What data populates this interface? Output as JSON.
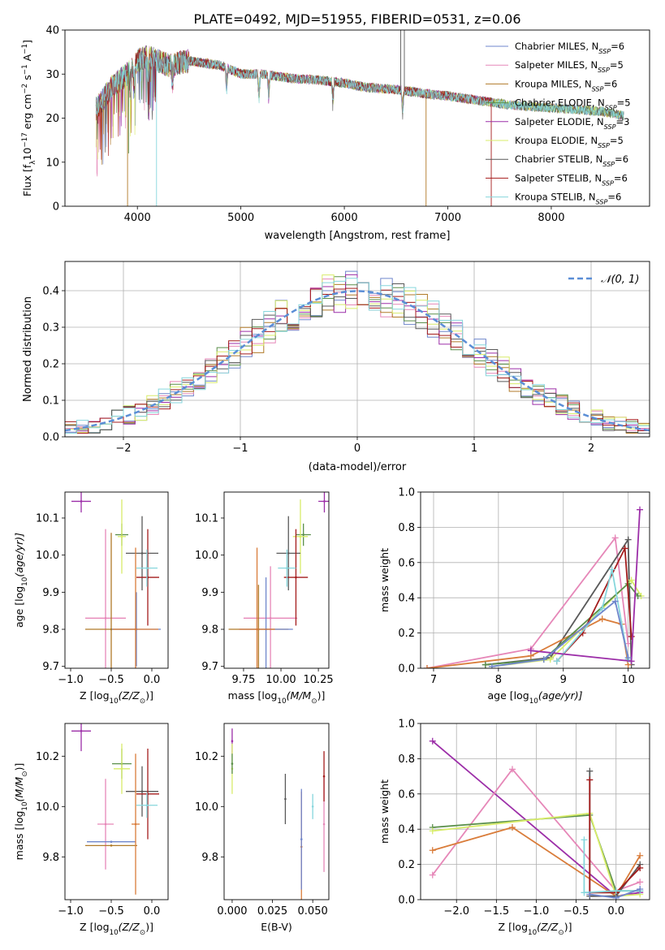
{
  "figure": {
    "title": "PLATE=0492, MJD=51955, FIBERID=0531, z=0.06"
  },
  "colors": {
    "Chabrier MILES": "#6f86cc",
    "Salpeter MILES": "#e687b8",
    "Kroupa MILES": "#b07a28",
    "Chabrier ELODIE": "#5a8f4a",
    "Salpeter ELODIE": "#9c2ea8",
    "Kroupa ELODIE": "#d8ec6a",
    "Chabrier STELIB": "#595959",
    "Salpeter STELIB": "#a41c1c",
    "Kroupa STELIB": "#86d6dc",
    "Kroupa STELIB orange": "#d97c3a",
    "gauss": "#5b8ed6"
  },
  "chart_data": [
    {
      "id": "spectrum",
      "type": "line",
      "xlabel": "wavelength [Angstrom, rest frame]",
      "ylabel": "Flux [f",
      "ylabel_sub": "λ",
      "ylabel_rest": "10",
      "ylabel_exp": "−17",
      "ylabel_units": " erg cm",
      "ylabel_exp2": "−2",
      "ylabel_s": " s",
      "ylabel_exp3": "−1",
      "ylabel_a": " A",
      "ylabel_exp4": "−1",
      "ylabel_end": "]",
      "xlim": [
        3300,
        8950
      ],
      "ylim": [
        0,
        40
      ],
      "xticks": [
        "4000",
        "5000",
        "6000",
        "7000",
        "8000"
      ],
      "xtick_values": [
        4000,
        5000,
        6000,
        7000,
        8000
      ],
      "yticks": [
        "0",
        "10",
        "20",
        "30",
        "40"
      ],
      "ytick_values": [
        0,
        10,
        20,
        30,
        40
      ],
      "legend_position": "top-right",
      "continuum": {
        "x": [
          3600,
          3750,
          3900,
          4000,
          4100,
          4300,
          4500,
          4800,
          5000,
          5200,
          5500,
          5800,
          6000,
          6200,
          6500,
          6800,
          7000,
          7300,
          7600,
          7900,
          8200,
          8500,
          8700
        ],
        "y": [
          22,
          27,
          30,
          33,
          34,
          32,
          33,
          32,
          30,
          30,
          29,
          28.5,
          28,
          27,
          26.5,
          25.5,
          25,
          24,
          23,
          22.5,
          22,
          21.5,
          20.5
        ]
      },
      "series": [
        {
          "name": "Chabrier MILES",
          "nssp": "6"
        },
        {
          "name": "Salpeter MILES",
          "nssp": "5"
        },
        {
          "name": "Kroupa MILES",
          "nssp": "6"
        },
        {
          "name": "Chabrier ELODIE",
          "nssp": "5"
        },
        {
          "name": "Salpeter ELODIE",
          "nssp": "3"
        },
        {
          "name": "Kroupa ELODIE",
          "nssp": "5"
        },
        {
          "name": "Chabrier STELIB",
          "nssp": "6"
        },
        {
          "name": "Salpeter STELIB",
          "nssp": "6"
        },
        {
          "name": "Kroupa STELIB",
          "nssp": "6"
        }
      ],
      "legend_label_prefix": ", N",
      "legend_label_sub": "SSP",
      "legend_label_eq": "="
    },
    {
      "id": "residuals",
      "type": "step",
      "xlabel": "(data-model)/error",
      "ylabel": "Normed distribution",
      "xlim": [
        -2.5,
        2.5
      ],
      "ylim": [
        0,
        0.48
      ],
      "xticks": [
        "−2",
        "−1",
        "0",
        "1",
        "2"
      ],
      "xtick_values": [
        -2,
        -1,
        0,
        1,
        2
      ],
      "yticks": [
        "0.0",
        "0.1",
        "0.2",
        "0.3",
        "0.4"
      ],
      "ytick_values": [
        0,
        0.1,
        0.2,
        0.3,
        0.4
      ],
      "grid": true,
      "legend": "𝒩(0, 1)",
      "legend_position": "top-right",
      "bin_width": 0.1
    },
    {
      "id": "age-vs-Z",
      "type": "errorbar",
      "xlabel": "Z [log",
      "xlabel_sub": "10",
      "xlabel_rest": "(Z/Z",
      "xlabel_sub2": "⊙",
      "xlabel_end": ")]",
      "ylabel": "age  [log",
      "ylabel_sub": "10",
      "ylabel_rest": "(age/yr)]",
      "xlim": [
        -1.07,
        0.2
      ],
      "ylim": [
        9.695,
        10.17
      ],
      "xticks": [
        "−1.0",
        "−0.5",
        "0.0"
      ],
      "xtick_values": [
        -1.0,
        -0.5,
        0.0
      ],
      "yticks": [
        "9.7",
        "9.8",
        "9.9",
        "10.0",
        "10.1"
      ],
      "ytick_values": [
        9.7,
        9.8,
        9.9,
        10.0,
        10.1
      ],
      "points": [
        {
          "series": "Salpeter ELODIE",
          "x": -0.87,
          "y": 10.145,
          "xerr": 0.12,
          "yerr": 0.03
        },
        {
          "series": "Salpeter MILES",
          "x": -0.57,
          "y": 9.83,
          "xerr": 0.25,
          "yerr": 0.24
        },
        {
          "series": "Kroupa MILES",
          "x": -0.5,
          "y": 9.8,
          "xerr": 0.32,
          "yerr": 0.26
        },
        {
          "series": "Chabrier MILES",
          "x": -0.19,
          "y": 9.8,
          "xerr": 0.3,
          "yerr": 0.1
        },
        {
          "series": "Chabrier ELODIE",
          "x": -0.37,
          "y": 10.055,
          "xerr": 0.08,
          "yerr": 0.03
        },
        {
          "series": "Kroupa ELODIE",
          "x": -0.37,
          "y": 10.05,
          "xerr": 0.05,
          "yerr": 0.1
        },
        {
          "series": "Chabrier STELIB",
          "x": -0.12,
          "y": 10.005,
          "xerr": 0.2,
          "yerr": 0.1
        },
        {
          "series": "Salpeter STELIB",
          "x": -0.05,
          "y": 9.94,
          "xerr": 0.14,
          "yerr": 0.13
        },
        {
          "series": "Kroupa STELIB",
          "x": -0.06,
          "y": 9.965,
          "xerr": 0.13,
          "yerr": 0.05
        },
        {
          "series": "Kroupa STELIB orange",
          "x": -0.2,
          "y": 9.8,
          "xerr": 0.28,
          "yerr": 0.22
        }
      ]
    },
    {
      "id": "age-vs-mass",
      "type": "errorbar",
      "xlabel": "mass [log",
      "xlabel_sub": "10",
      "xlabel_rest": "(M/M",
      "xlabel_sub2": "⊙",
      "xlabel_end": ")]",
      "xlim": [
        9.62,
        10.32
      ],
      "ylim": [
        9.695,
        10.17
      ],
      "xticks": [
        "9.75",
        "10.00",
        "10.25"
      ],
      "xtick_values": [
        9.75,
        10.0,
        10.25
      ],
      "yticks": [
        "9.7",
        "9.8",
        "9.9",
        "10.0",
        "10.1"
      ],
      "ytick_values": [
        9.7,
        9.8,
        9.9,
        10.0,
        10.1
      ],
      "points": [
        {
          "series": "Salpeter ELODIE",
          "x": 10.29,
          "y": 10.145,
          "xerr": 0.04,
          "yerr": 0.03
        },
        {
          "series": "Salpeter MILES",
          "x": 9.93,
          "y": 9.83,
          "xerr": 0.18,
          "yerr": 0.14
        },
        {
          "series": "Kroupa MILES",
          "x": 9.85,
          "y": 9.8,
          "xerr": 0.2,
          "yerr": 0.12
        },
        {
          "series": "Chabrier MILES",
          "x": 9.9,
          "y": 9.8,
          "xerr": 0.18,
          "yerr": 0.14
        },
        {
          "series": "Chabrier ELODIE",
          "x": 10.15,
          "y": 10.055,
          "xerr": 0.05,
          "yerr": 0.03
        },
        {
          "series": "Kroupa ELODIE",
          "x": 10.13,
          "y": 10.05,
          "xerr": 0.05,
          "yerr": 0.1
        },
        {
          "series": "Chabrier STELIB",
          "x": 10.05,
          "y": 10.005,
          "xerr": 0.08,
          "yerr": 0.1
        },
        {
          "series": "Salpeter STELIB",
          "x": 10.1,
          "y": 9.94,
          "xerr": 0.08,
          "yerr": 0.13
        },
        {
          "series": "Kroupa STELIB",
          "x": 10.04,
          "y": 9.965,
          "xerr": 0.06,
          "yerr": 0.05
        },
        {
          "series": "Kroupa STELIB orange",
          "x": 9.84,
          "y": 9.8,
          "xerr": 0.12,
          "yerr": 0.22
        }
      ]
    },
    {
      "id": "weight-vs-age",
      "type": "line",
      "xlabel": "age  [log",
      "xlabel_sub": "10",
      "xlabel_rest": "(age/yr)]",
      "ylabel": "mass weight",
      "xlim": [
        6.8,
        10.33
      ],
      "ylim": [
        0,
        1
      ],
      "xticks": [
        "7",
        "8",
        "9",
        "10"
      ],
      "xtick_values": [
        7,
        8,
        9,
        10
      ],
      "yticks": [
        "0.0",
        "0.2",
        "0.4",
        "0.6",
        "0.8",
        "1.0"
      ],
      "ytick_values": [
        0,
        0.2,
        0.4,
        0.6,
        0.8,
        1.0
      ],
      "grid": true,
      "lines": [
        {
          "series": "Salpeter MILES",
          "x": [
            6.9,
            8.5,
            9.8,
            10.0
          ],
          "y": [
            0.0,
            0.11,
            0.74,
            0.14
          ]
        },
        {
          "series": "Chabrier STELIB",
          "x": [
            7.8,
            8.8,
            10.0,
            10.05
          ],
          "y": [
            0.02,
            0.06,
            0.73,
            0.02
          ]
        },
        {
          "series": "Kroupa STELIB orange",
          "x": [
            6.9,
            8.5,
            9.6,
            9.9,
            10.0
          ],
          "y": [
            0.0,
            0.07,
            0.28,
            0.25,
            0.02
          ]
        },
        {
          "series": "Kroupa ELODIE",
          "x": [
            7.9,
            8.8,
            10.05,
            10.2
          ],
          "y": [
            0.01,
            0.05,
            0.5,
            0.41
          ]
        },
        {
          "series": "Chabrier ELODIE",
          "x": [
            7.8,
            8.7,
            10.0,
            10.15
          ],
          "y": [
            0.02,
            0.05,
            0.48,
            0.41
          ]
        },
        {
          "series": "Salpeter STELIB",
          "x": [
            8.9,
            9.3,
            9.95,
            10.05
          ],
          "y": [
            0.04,
            0.2,
            0.68,
            0.18
          ]
        },
        {
          "series": "Kroupa STELIB",
          "x": [
            8.9,
            9.6,
            9.75,
            10.0
          ],
          "y": [
            0.04,
            0.34,
            0.56,
            0.05
          ]
        },
        {
          "series": "Salpeter ELODIE",
          "x": [
            8.5,
            10.05,
            10.18
          ],
          "y": [
            0.1,
            0.04,
            0.9
          ]
        },
        {
          "series": "Chabrier MILES",
          "x": [
            7.9,
            8.7,
            9.8,
            10.0
          ],
          "y": [
            0.01,
            0.05,
            0.38,
            0.06
          ]
        }
      ]
    },
    {
      "id": "mass-vs-Z",
      "type": "errorbar",
      "xlabel": "Z [log",
      "xlabel_sub": "10",
      "xlabel_rest": "(Z/Z",
      "xlabel_sub2": "⊙",
      "xlabel_end": ")]",
      "ylabel": "mass [log",
      "ylabel_sub": "10",
      "ylabel_rest": "(M/M",
      "ylabel_sub2": "⊙",
      "ylabel_end": ")]",
      "xlim": [
        -1.07,
        0.2
      ],
      "ylim": [
        9.63,
        10.33
      ],
      "xticks": [
        "−1.0",
        "−0.5",
        "0.0"
      ],
      "xtick_values": [
        -1.0,
        -0.5,
        0.0
      ],
      "yticks": [
        "9.8",
        "10.0",
        "10.2"
      ],
      "ytick_values": [
        9.8,
        10.0,
        10.2
      ],
      "points": [
        {
          "series": "Salpeter ELODIE",
          "x": -0.87,
          "y": 10.3,
          "xerr": 0.12,
          "yerr": 0.08
        },
        {
          "series": "Salpeter MILES",
          "x": -0.57,
          "y": 9.93,
          "xerr": 0.1,
          "yerr": 0.18
        },
        {
          "series": "Kroupa MILES",
          "x": -0.5,
          "y": 9.845,
          "xerr": 0.32,
          "yerr": 0.0
        },
        {
          "series": "Chabrier MILES",
          "x": -0.5,
          "y": 9.86,
          "xerr": 0.3,
          "yerr": 0.0
        },
        {
          "series": "Chabrier ELODIE",
          "x": -0.37,
          "y": 10.17,
          "xerr": 0.12,
          "yerr": 0.06
        },
        {
          "series": "Kroupa ELODIE",
          "x": -0.37,
          "y": 10.15,
          "xerr": 0.1,
          "yerr": 0.1
        },
        {
          "series": "Chabrier STELIB",
          "x": -0.12,
          "y": 10.06,
          "xerr": 0.2,
          "yerr": 0.1
        },
        {
          "series": "Salpeter STELIB",
          "x": -0.05,
          "y": 10.05,
          "xerr": 0.14,
          "yerr": 0.18
        },
        {
          "series": "Kroupa STELIB",
          "x": -0.06,
          "y": 10.005,
          "xerr": 0.13,
          "yerr": 0.05
        },
        {
          "series": "Kroupa STELIB orange",
          "x": -0.2,
          "y": 9.93,
          "xerr": 0.05,
          "yerr": 0.28
        }
      ]
    },
    {
      "id": "mass-vs-EBV",
      "type": "errorbar",
      "xlabel": "E(B-V)",
      "xlim": [
        -0.005,
        0.06
      ],
      "ylim": [
        9.63,
        10.33
      ],
      "xticks": [
        "0.000",
        "0.025",
        "0.050"
      ],
      "xtick_values": [
        0.0,
        0.025,
        0.05
      ],
      "yticks": [
        "9.8",
        "10.0",
        "10.2"
      ],
      "ytick_values": [
        9.8,
        10.0,
        10.2
      ],
      "points": [
        {
          "series": "Salpeter ELODIE",
          "x": 0.0,
          "y": 10.26,
          "xerr": 0,
          "yerr": 0.05
        },
        {
          "series": "Kroupa ELODIE",
          "x": 0.0,
          "y": 10.15,
          "xerr": 0,
          "yerr": 0.1
        },
        {
          "series": "Chabrier ELODIE",
          "x": 0.0,
          "y": 10.17,
          "xerr": 0,
          "yerr": 0.04
        },
        {
          "series": "Chabrier STELIB",
          "x": 0.033,
          "y": 10.03,
          "xerr": 0,
          "yerr": 0.1
        },
        {
          "series": "Kroupa STELIB orange",
          "x": 0.043,
          "y": 9.84,
          "xerr": 0,
          "yerr": 0.22
        },
        {
          "series": "Chabrier MILES",
          "x": 0.043,
          "y": 9.87,
          "xerr": 0,
          "yerr": 0.2
        },
        {
          "series": "Kroupa STELIB",
          "x": 0.05,
          "y": 10.0,
          "xerr": 0,
          "yerr": 0.05
        },
        {
          "series": "Salpeter MILES",
          "x": 0.057,
          "y": 9.93,
          "xerr": 0,
          "yerr": 0.19
        },
        {
          "series": "Salpeter STELIB",
          "x": 0.057,
          "y": 10.12,
          "xerr": 0,
          "yerr": 0.1
        }
      ]
    },
    {
      "id": "weight-vs-Z",
      "type": "line",
      "xlabel": "Z [log",
      "xlabel_sub": "10",
      "xlabel_rest": "(Z/Z",
      "xlabel_sub2": "⊙",
      "xlabel_end": ")]",
      "ylabel": "mass weight",
      "xlim": [
        -2.45,
        0.42
      ],
      "ylim": [
        0,
        1
      ],
      "xticks": [
        "−2.0",
        "−1.5",
        "−1.0",
        "−0.5",
        "0.0"
      ],
      "xtick_values": [
        -2.0,
        -1.5,
        -1.0,
        -0.5,
        0.0
      ],
      "yticks": [
        "0.0",
        "0.2",
        "0.4",
        "0.6",
        "0.8",
        "1.0"
      ],
      "ytick_values": [
        0,
        0.2,
        0.4,
        0.6,
        0.8,
        1.0
      ],
      "grid": true,
      "lines": [
        {
          "series": "Salpeter ELODIE",
          "x": [
            -2.3,
            0.0,
            0.3
          ],
          "y": [
            0.9,
            0.02,
            0.04
          ]
        },
        {
          "series": "Salpeter MILES",
          "x": [
            -2.3,
            -1.3,
            0.0,
            0.3
          ],
          "y": [
            0.14,
            0.74,
            0.05,
            0.1
          ]
        },
        {
          "series": "Kroupa STELIB orange",
          "x": [
            -2.3,
            -1.3,
            0.0,
            0.3
          ],
          "y": [
            0.28,
            0.41,
            0.02,
            0.25
          ]
        },
        {
          "series": "Chabrier ELODIE",
          "x": [
            -2.3,
            -0.33,
            0.0,
            0.3
          ],
          "y": [
            0.41,
            0.48,
            0.05,
            0.05
          ]
        },
        {
          "series": "Kroupa ELODIE",
          "x": [
            -2.3,
            -0.33,
            0.0,
            0.3
          ],
          "y": [
            0.39,
            0.49,
            0.02,
            0.03
          ]
        },
        {
          "series": "Chabrier STELIB",
          "x": [
            -0.33,
            -0.33,
            0.0,
            0.3
          ],
          "y": [
            0.73,
            0.02,
            0.02,
            0.2
          ]
        },
        {
          "series": "Salpeter STELIB",
          "x": [
            -0.33,
            -0.33,
            0.0,
            0.3
          ],
          "y": [
            0.68,
            0.04,
            0.04,
            0.18
          ]
        },
        {
          "series": "Kroupa STELIB",
          "x": [
            -0.4,
            -0.4,
            0.0,
            0.3
          ],
          "y": [
            0.34,
            0.04,
            0.05,
            0.05
          ]
        },
        {
          "series": "Chabrier MILES",
          "x": [
            -0.33,
            0.0,
            0.3
          ],
          "y": [
            0.03,
            0.01,
            0.06
          ]
        }
      ]
    }
  ]
}
